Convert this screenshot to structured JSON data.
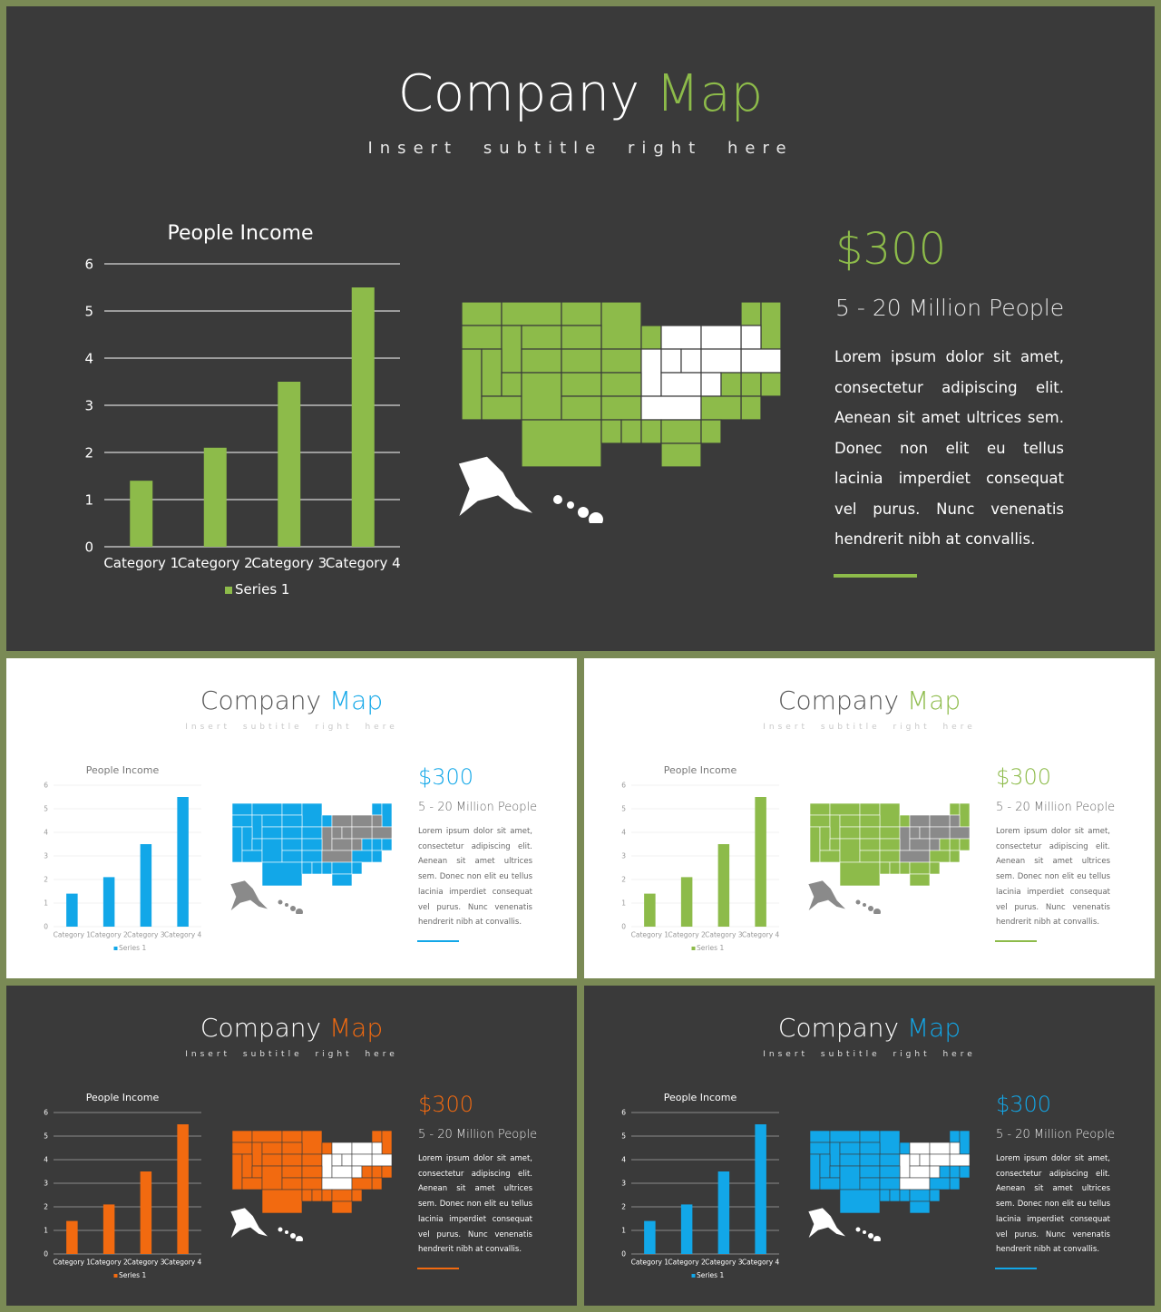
{
  "slides": [
    {
      "theme": "dark",
      "accent": "#8dbb4a",
      "title_main": "Company",
      "title_accent": "Map",
      "subtitle": "Insert subtitle right here",
      "price": "$300",
      "people": "5 - 20 Million People",
      "lorem": "Lorem ipsum dolor sit amet, consectetur adipiscing elit. Aenean sit amet ultrices sem. Donec non elit eu tellus lacinia imperdiet consequat vel purus. Nunc venenatis hendrerit nibh at convallis.",
      "map_base_color": "#ffffff",
      "chart_data": {
        "type": "bar",
        "title": "People Income",
        "categories": [
          "Category 1",
          "Category 2",
          "Category 3",
          "Category 4"
        ],
        "series": [
          {
            "name": "Series 1",
            "values": [
              1.4,
              2.1,
              3.5,
              5.5
            ]
          }
        ],
        "ylim": [
          0,
          6
        ],
        "yticks": [
          0,
          1,
          2,
          3,
          4,
          5,
          6
        ],
        "grid": true,
        "legend": "bottom"
      }
    },
    {
      "theme": "light",
      "accent": "#12a7e8",
      "title_main": "Company",
      "title_accent": "Map",
      "subtitle": "Insert subtitle right here",
      "price": "$300",
      "people": "5 - 20 Million People",
      "lorem": "Lorem ipsum dolor sit amet, consectetur adipiscing elit. Aenean sit amet ultrices sem. Donec non elit eu tellus lacinia imperdiet consequat vel purus. Nunc venenatis hendrerit nibh at convallis.",
      "map_base_color": "#8a8a8a",
      "chart_data": {
        "type": "bar",
        "title": "People Income",
        "categories": [
          "Category 1",
          "Category 2",
          "Category 3",
          "Category 4"
        ],
        "series": [
          {
            "name": "Series 1",
            "values": [
              1.4,
              2.1,
              3.5,
              5.5
            ]
          }
        ],
        "ylim": [
          0,
          6
        ],
        "yticks": [
          0,
          1,
          2,
          3,
          4,
          5,
          6
        ],
        "grid": true,
        "legend": "bottom"
      }
    },
    {
      "theme": "light",
      "accent": "#8dbb4a",
      "title_main": "Company",
      "title_accent": "Map",
      "subtitle": "Insert subtitle right here",
      "price": "$300",
      "people": "5 - 20 Million People",
      "lorem": "Lorem ipsum dolor sit amet, consectetur adipiscing elit. Aenean sit amet ultrices sem. Donec non elit eu tellus lacinia imperdiet consequat vel purus. Nunc venenatis hendrerit nibh at convallis.",
      "map_base_color": "#8a8a8a",
      "chart_data": {
        "type": "bar",
        "title": "People Income",
        "categories": [
          "Category 1",
          "Category 2",
          "Category 3",
          "Category 4"
        ],
        "series": [
          {
            "name": "Series 1",
            "values": [
              1.4,
              2.1,
              3.5,
              5.5
            ]
          }
        ],
        "ylim": [
          0,
          6
        ],
        "yticks": [
          0,
          1,
          2,
          3,
          4,
          5,
          6
        ],
        "grid": true,
        "legend": "bottom"
      }
    },
    {
      "theme": "dark",
      "accent": "#f26a10",
      "title_main": "Company",
      "title_accent": "Map",
      "subtitle": "Insert subtitle right here",
      "price": "$300",
      "people": "5 - 20 Million People",
      "lorem": "Lorem ipsum dolor sit amet, consectetur adipiscing elit. Aenean sit amet ultrices sem. Donec non elit eu tellus lacinia imperdiet consequat vel purus. Nunc venenatis hendrerit nibh at convallis.",
      "map_base_color": "#ffffff",
      "chart_data": {
        "type": "bar",
        "title": "People Income",
        "categories": [
          "Category 1",
          "Category 2",
          "Category 3",
          "Category 4"
        ],
        "series": [
          {
            "name": "Series 1",
            "values": [
              1.4,
              2.1,
              3.5,
              5.5
            ]
          }
        ],
        "ylim": [
          0,
          6
        ],
        "yticks": [
          0,
          1,
          2,
          3,
          4,
          5,
          6
        ],
        "grid": true,
        "legend": "bottom"
      }
    },
    {
      "theme": "dark",
      "accent": "#12a7e8",
      "title_main": "Company",
      "title_accent": "Map",
      "subtitle": "Insert subtitle right here",
      "price": "$300",
      "people": "5 - 20 Million People",
      "lorem": "Lorem ipsum dolor sit amet, consectetur adipiscing elit. Aenean sit amet ultrices sem. Donec non elit eu tellus lacinia imperdiet consequat vel purus. Nunc venenatis hendrerit nibh at convallis.",
      "map_base_color": "#ffffff",
      "chart_data": {
        "type": "bar",
        "title": "People Income",
        "categories": [
          "Category 1",
          "Category 2",
          "Category 3",
          "Category 4"
        ],
        "series": [
          {
            "name": "Series 1",
            "values": [
              1.4,
              2.1,
              3.5,
              5.5
            ]
          }
        ],
        "ylim": [
          0,
          6
        ],
        "yticks": [
          0,
          1,
          2,
          3,
          4,
          5,
          6
        ],
        "grid": true,
        "legend": "bottom"
      }
    }
  ]
}
